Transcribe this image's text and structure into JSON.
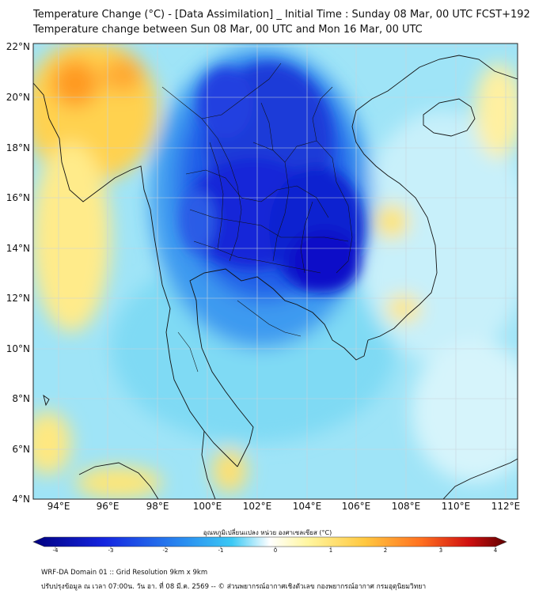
{
  "title": {
    "line1": "Temperature Change (°C) - [Data Assimilation] _ Initial Time : Sunday 08 Mar, 00 UTC FCST+192",
    "line2": "Temperature change between Sun 08 Mar, 00 UTC and Mon 16 Mar, 00 UTC"
  },
  "map": {
    "lat_labels": [
      "22°N",
      "20°N",
      "18°N",
      "16°N",
      "14°N",
      "12°N",
      "10°N",
      "8°N",
      "6°N",
      "4°N"
    ],
    "lon_labels": [
      "94°E",
      "96°E",
      "98°E",
      "100°E",
      "102°E",
      "104°E",
      "106°E",
      "108°E",
      "110°E",
      "112°E"
    ],
    "lat_range": [
      4,
      22
    ],
    "lon_range": [
      93,
      112.5
    ]
  },
  "colorbar": {
    "title": "อุณหภูมิเปลี่ยนแปลง หน่วย องศาเซลเซียส (°C)",
    "ticks": [
      "-4",
      "-3",
      "-2",
      "-1",
      "0",
      "1",
      "2",
      "3",
      "4"
    ],
    "range": [
      -4,
      4
    ],
    "colors": {
      "min": "#000080",
      "blue": "#1525e0",
      "mid_blue": "#2a8ef0",
      "cyan": "#3cc9f5",
      "light": "#dff5fb",
      "yellow": "#ffe870",
      "orange": "#ffa020",
      "red": "#e52010",
      "max": "#600000"
    }
  },
  "footer": {
    "line1": "WRF-DA Domain 01 :: Grid Resolution 9km x 9km",
    "line2": "ปรับปรุงข้อมูล ณ เวลา 07:00น. วัน อา. ที่ 08 มี.ค. 2569 -- © ส่วนพยากรณ์อากาศเชิงตัวเลข กองพยากรณ์อากาศ กรมอุตุนิยมวิทยา"
  }
}
